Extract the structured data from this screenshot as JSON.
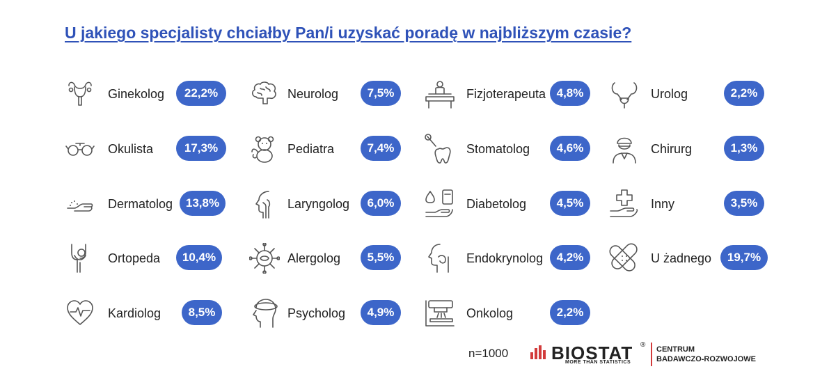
{
  "title": "U jakiego specjalisty chciałby Pan/i uzyskać poradę w najbliższym czasie?",
  "chart_data": {
    "type": "table",
    "categories": [
      "Ginekolog",
      "Okulista",
      "Dermatolog",
      "Ortopeda",
      "Kardiolog",
      "Neurolog",
      "Pediatra",
      "Laryngolog",
      "Alergolog",
      "Psycholog",
      "Fizjoterapeuta",
      "Stomatolog",
      "Diabetolog",
      "Endokrynolog",
      "Onkolog",
      "Urolog",
      "Chirurg",
      "Inny",
      "U żadnego"
    ],
    "values": [
      22.2,
      17.3,
      13.8,
      10.4,
      8.5,
      7.5,
      7.4,
      6.0,
      5.5,
      4.9,
      4.8,
      4.6,
      4.5,
      4.2,
      2.2,
      2.2,
      1.3,
      3.5,
      19.7
    ],
    "value_labels": [
      "22,2%",
      "17,3%",
      "13,8%",
      "10,4%",
      "8,5%",
      "7,5%",
      "7,4%",
      "6,0%",
      "5,5%",
      "4,9%",
      "4,8%",
      "4,6%",
      "4,5%",
      "4,2%",
      "2,2%",
      "2,2%",
      "1,3%",
      "3,5%",
      "19,7%"
    ],
    "icons": [
      "uterus-icon",
      "glasses-icon",
      "skin-hand-icon",
      "knee-joint-icon",
      "heart-pulse-icon",
      "brain-icon",
      "teddy-bear-icon",
      "throat-profile-icon",
      "allergen-virus-icon",
      "head-mind-icon",
      "physio-massage-icon",
      "tooth-mirror-icon",
      "glucose-drop-icon",
      "thyroid-profile-icon",
      "radiotherapy-machine-icon",
      "urinary-icon",
      "surgeon-icon",
      "medical-cross-hand-icon",
      "bandage-icon"
    ]
  },
  "footer": {
    "n_label": "n=1000",
    "logo_word": "BIOSTAT",
    "logo_reg": "®",
    "logo_tagline": "MORE THAN STATISTICS",
    "centrum_line1": "CENTRUM",
    "centrum_line2": "BADAWCZO-ROZWOJOWE",
    "accent_color": "#d23b3b"
  },
  "colors": {
    "title": "#2f52b8",
    "badge": "#3d66c9",
    "badge_text": "#ffffff",
    "icon": "#555555"
  }
}
